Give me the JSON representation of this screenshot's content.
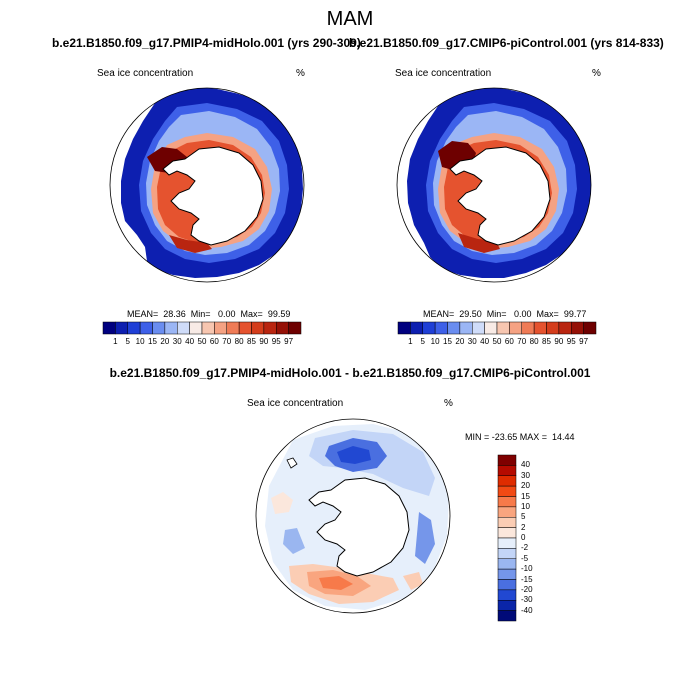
{
  "figure": {
    "title": "MAM",
    "var_label": "Sea ice concentration",
    "units": "%",
    "panel_titles": [
      "b.e21.B1850.f09_g17.PMIP4-midHolo.001 (yrs 290-309)",
      "b.e21.B1850.f09_g17.CMIP6-piControl.001 (yrs 814-833)"
    ],
    "diff_title": "b.e21.B1850.f09_g17.PMIP4-midHolo.001 - b.e21.B1850.f09_g17.CMIP6-piControl.001",
    "diff_stats": "MIN = -23.65 MAX =  14.44"
  },
  "chart_data": [
    {
      "type": "heatmap",
      "projection": "south-polar-stereographic",
      "title": "b.e21.B1850.f09_g17.PMIP4-midHolo.001 (yrs 290-309)",
      "label": "Sea ice concentration",
      "units": "%",
      "stats_text": "MEAN=  28.36  Min=   0.00  Max=  99.59",
      "mean": 28.36,
      "min": 0.0,
      "max": 99.59,
      "colorbar_levels": [
        "1",
        "5",
        "10",
        "15",
        "20",
        "30",
        "40",
        "50",
        "60",
        "70",
        "80",
        "85",
        "90",
        "95",
        "97"
      ],
      "colorbar_colors": [
        "#00007f",
        "#0d1fb0",
        "#1f3fd6",
        "#3e60e8",
        "#6a8df0",
        "#9bb6f5",
        "#cfdcf9",
        "#f8ebe6",
        "#f7c6b0",
        "#f5a283",
        "#ef7b56",
        "#e5532f",
        "#d43d1c",
        "#b92510",
        "#951006",
        "#6e0000"
      ]
    },
    {
      "type": "heatmap",
      "projection": "south-polar-stereographic",
      "title": "b.e21.B1850.f09_g17.CMIP6-piControl.001 (yrs 814-833)",
      "label": "Sea ice concentration",
      "units": "%",
      "stats_text": "MEAN=  29.50  Min=   0.00  Max=  99.77",
      "mean": 29.5,
      "min": 0.0,
      "max": 99.77,
      "colorbar_levels": [
        "1",
        "5",
        "10",
        "15",
        "20",
        "30",
        "40",
        "50",
        "60",
        "70",
        "80",
        "85",
        "90",
        "95",
        "97"
      ],
      "colorbar_colors": [
        "#00007f",
        "#0d1fb0",
        "#1f3fd6",
        "#3e60e8",
        "#6a8df0",
        "#9bb6f5",
        "#cfdcf9",
        "#f8ebe6",
        "#f7c6b0",
        "#f5a283",
        "#ef7b56",
        "#e5532f",
        "#d43d1c",
        "#b92510",
        "#951006",
        "#6e0000"
      ]
    },
    {
      "type": "heatmap",
      "projection": "south-polar-stereographic",
      "title": "b.e21.B1850.f09_g17.PMIP4-midHolo.001 - b.e21.B1850.f09_g17.CMIP6-piControl.001",
      "label": "Sea ice concentration",
      "units": "%",
      "min": -23.65,
      "max": 14.44,
      "colorbar_levels": [
        "40",
        "30",
        "20",
        "15",
        "10",
        "5",
        "2",
        "0",
        "-2",
        "-5",
        "-10",
        "-15",
        "-20",
        "-30",
        "-40"
      ],
      "colorbar_colors": [
        "#7f0000",
        "#b50b00",
        "#df2c00",
        "#f24a14",
        "#f77a4a",
        "#f9a57f",
        "#fbcdb4",
        "#fbe7dc",
        "#e6effb",
        "#c3d5f7",
        "#9ab6f0",
        "#7596ea",
        "#4a6fe0",
        "#2148d2",
        "#0a25a8",
        "#000a78"
      ]
    }
  ]
}
